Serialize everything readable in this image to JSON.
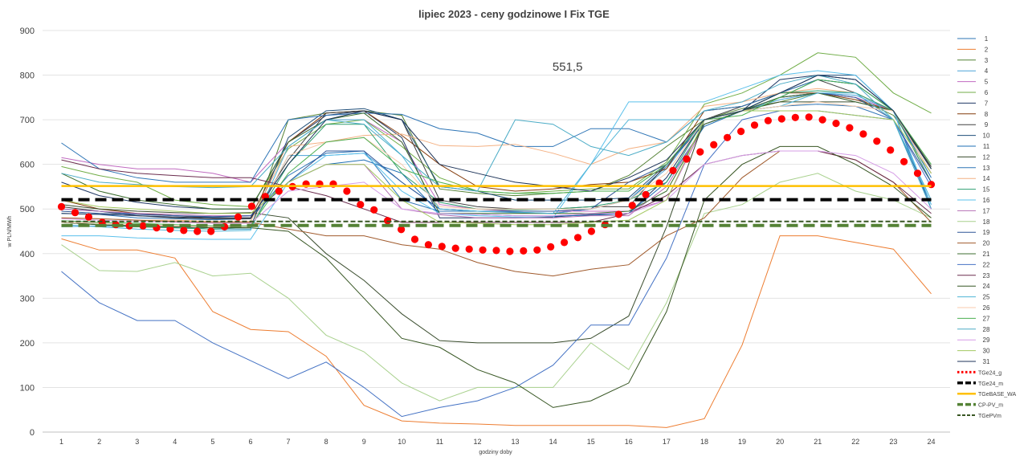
{
  "chart_data": {
    "type": "line",
    "title": "lipiec 2023 - ceny godzinowe I Fix TGE",
    "xlabel": "godziny doby",
    "ylabel": "w PLN/MWh",
    "ylim": [
      0,
      900
    ],
    "yticks": [
      "0",
      "100",
      "200",
      "300",
      "400",
      "500",
      "600",
      "700",
      "800",
      "900"
    ],
    "categories": [
      "1",
      "2",
      "3",
      "4",
      "5",
      "6",
      "7",
      "8",
      "9",
      "10",
      "11",
      "12",
      "13",
      "14",
      "15",
      "16",
      "17",
      "18",
      "19",
      "20",
      "21",
      "22",
      "23",
      "24"
    ],
    "annotation": {
      "text": "551,5",
      "x": 13.9,
      "y": 812
    },
    "series": [
      {
        "name": "1",
        "color": "#2e75b6",
        "values": [
          490,
          488,
          480,
          478,
          476,
          478,
          575,
          625,
          630,
          520,
          495,
          495,
          492,
          490,
          500,
          520,
          595,
          700,
          720,
          730,
          735,
          730,
          700,
          510
        ]
      },
      {
        "name": "2",
        "color": "#ed7d31",
        "values": [
          433,
          408,
          408,
          390,
          270,
          230,
          225,
          170,
          60,
          25,
          20,
          18,
          15,
          15,
          15,
          15,
          10,
          30,
          195,
          440,
          440,
          425,
          410,
          310
        ]
      },
      {
        "name": "3",
        "color": "#548235",
        "values": [
          470,
          465,
          460,
          458,
          455,
          455,
          700,
          715,
          720,
          710,
          545,
          535,
          530,
          535,
          540,
          575,
          640,
          700,
          725,
          740,
          760,
          750,
          710,
          595
        ]
      },
      {
        "name": "4",
        "color": "#4aa3d8",
        "values": [
          460,
          462,
          460,
          458,
          455,
          455,
          620,
          620,
          625,
          560,
          500,
          495,
          493,
          490,
          500,
          520,
          590,
          700,
          720,
          745,
          760,
          755,
          720,
          560
        ]
      },
      {
        "name": "5",
        "color": "#c06ac0",
        "values": [
          615,
          600,
          590,
          590,
          580,
          560,
          650,
          700,
          700,
          650,
          510,
          500,
          495,
          495,
          495,
          495,
          520,
          690,
          720,
          750,
          760,
          750,
          720,
          590
        ]
      },
      {
        "name": "6",
        "color": "#70ad47",
        "values": [
          595,
          575,
          560,
          520,
          510,
          505,
          635,
          690,
          700,
          640,
          570,
          540,
          535,
          540,
          545,
          545,
          605,
          735,
          760,
          800,
          850,
          840,
          760,
          715
        ]
      },
      {
        "name": "7",
        "color": "#203864",
        "values": [
          560,
          530,
          515,
          505,
          500,
          500,
          650,
          710,
          720,
          660,
          480,
          480,
          480,
          482,
          488,
          490,
          570,
          700,
          720,
          790,
          800,
          790,
          720,
          560
        ]
      },
      {
        "name": "8",
        "color": "#843c0c",
        "values": [
          520,
          500,
          490,
          485,
          480,
          480,
          650,
          715,
          720,
          665,
          600,
          550,
          540,
          545,
          555,
          560,
          590,
          720,
          730,
          760,
          760,
          745,
          720,
          580
        ]
      },
      {
        "name": "9",
        "color": "#404040",
        "values": [
          505,
          495,
          485,
          480,
          478,
          478,
          610,
          715,
          720,
          700,
          520,
          505,
          500,
          500,
          505,
          505,
          600,
          700,
          730,
          760,
          790,
          760,
          720,
          595
        ]
      },
      {
        "name": "10",
        "color": "#1f4e79",
        "values": [
          470,
          465,
          462,
          460,
          458,
          460,
          660,
          720,
          725,
          700,
          550,
          540,
          520,
          520,
          520,
          525,
          600,
          700,
          720,
          760,
          800,
          800,
          720,
          500
        ]
      },
      {
        "name": "11",
        "color": "#1f6fb5",
        "values": [
          500,
          495,
          488,
          485,
          482,
          485,
          560,
          600,
          610,
          580,
          490,
          488,
          485,
          484,
          486,
          490,
          560,
          685,
          720,
          750,
          790,
          780,
          720,
          570
        ]
      },
      {
        "name": "12",
        "color": "#3a4d2e",
        "values": [
          510,
          500,
          495,
          492,
          490,
          492,
          480,
          400,
          340,
          265,
          205,
          200,
          200,
          200,
          210,
          260,
          460,
          700,
          720,
          740,
          740,
          740,
          720,
          590
        ]
      },
      {
        "name": "13",
        "color": "#2e75b6",
        "values": [
          648,
          590,
          570,
          560,
          560,
          560,
          700,
          710,
          715,
          712,
          680,
          670,
          640,
          640,
          680,
          680,
          650,
          720,
          730,
          760,
          790,
          780,
          720,
          500
        ]
      },
      {
        "name": "14",
        "color": "#f4b183",
        "values": [
          480,
          478,
          475,
          475,
          472,
          472,
          640,
          650,
          665,
          668,
          642,
          640,
          645,
          625,
          600,
          635,
          650,
          730,
          740,
          760,
          770,
          760,
          720,
          560
        ]
      },
      {
        "name": "15",
        "color": "#2e9e70",
        "values": [
          470,
          465,
          460,
          458,
          455,
          460,
          600,
          690,
          690,
          580,
          515,
          500,
          498,
          500,
          505,
          520,
          560,
          700,
          720,
          760,
          765,
          760,
          720,
          560
        ]
      },
      {
        "name": "16",
        "color": "#5bc0eb",
        "values": [
          440,
          440,
          435,
          433,
          432,
          432,
          560,
          620,
          625,
          540,
          490,
          485,
          482,
          480,
          600,
          740,
          740,
          740,
          770,
          800,
          810,
          800,
          720,
          510
        ]
      },
      {
        "name": "17",
        "color": "#b470b4",
        "values": [
          500,
          495,
          490,
          488,
          485,
          485,
          560,
          600,
          600,
          500,
          487,
          480,
          480,
          480,
          485,
          485,
          550,
          690,
          720,
          750,
          760,
          740,
          720,
          580
        ]
      },
      {
        "name": "18",
        "color": "#a9d18e",
        "values": [
          420,
          362,
          360,
          380,
          350,
          356,
          300,
          217,
          180,
          110,
          70,
          100,
          100,
          100,
          200,
          140,
          290,
          490,
          510,
          560,
          580,
          540,
          520,
          480
        ]
      },
      {
        "name": "19",
        "color": "#2f5597",
        "values": [
          495,
          490,
          488,
          485,
          483,
          485,
          560,
          630,
          630,
          560,
          500,
          495,
          495,
          495,
          500,
          560,
          600,
          690,
          720,
          750,
          760,
          750,
          700,
          560
        ]
      },
      {
        "name": "20",
        "color": "#a05a2c",
        "values": [
          480,
          478,
          475,
          472,
          470,
          470,
          455,
          440,
          440,
          420,
          410,
          380,
          360,
          350,
          365,
          375,
          440,
          480,
          570,
          630,
          630,
          610,
          560,
          470
        ]
      },
      {
        "name": "21",
        "color": "#3c6e2f",
        "values": [
          580,
          540,
          520,
          510,
          500,
          500,
          650,
          700,
          715,
          650,
          490,
          490,
          490,
          490,
          490,
          495,
          540,
          690,
          720,
          750,
          760,
          740,
          720,
          590
        ]
      },
      {
        "name": "22",
        "color": "#4472c4",
        "values": [
          360,
          290,
          250,
          250,
          200,
          160,
          120,
          157,
          100,
          35,
          55,
          70,
          100,
          150,
          240,
          240,
          390,
          600,
          700,
          720,
          720,
          710,
          700,
          550
        ]
      },
      {
        "name": "23",
        "color": "#6b2c4e",
        "values": [
          610,
          590,
          580,
          575,
          570,
          570,
          550,
          530,
          500,
          470,
          470,
          470,
          470,
          470,
          470,
          490,
          530,
          600,
          620,
          630,
          630,
          610,
          560,
          490
        ]
      },
      {
        "name": "24",
        "color": "#375623",
        "values": [
          470,
          465,
          462,
          460,
          458,
          458,
          450,
          390,
          300,
          210,
          190,
          140,
          110,
          55,
          70,
          110,
          270,
          520,
          600,
          640,
          640,
          600,
          550,
          480
        ]
      },
      {
        "name": "25",
        "color": "#4fb4d6",
        "values": [
          465,
          460,
          455,
          452,
          450,
          452,
          640,
          700,
          700,
          620,
          500,
          495,
          493,
          490,
          600,
          700,
          700,
          700,
          720,
          730,
          760,
          760,
          700,
          520
        ]
      },
      {
        "name": "26",
        "color": "#f8cbad",
        "values": [
          470,
          468,
          465,
          462,
          460,
          460,
          620,
          650,
          660,
          600,
          505,
          500,
          500,
          500,
          500,
          520,
          580,
          700,
          720,
          730,
          740,
          730,
          720,
          580
        ]
      },
      {
        "name": "27",
        "color": "#4caf50",
        "values": [
          474,
          470,
          468,
          465,
          462,
          462,
          580,
          650,
          660,
          590,
          560,
          540,
          535,
          535,
          540,
          540,
          600,
          700,
          710,
          750,
          790,
          780,
          720,
          600
        ]
      },
      {
        "name": "28",
        "color": "#4bacc6",
        "values": [
          580,
          560,
          555,
          550,
          548,
          550,
          640,
          700,
          690,
          620,
          550,
          540,
          700,
          690,
          640,
          620,
          650,
          720,
          740,
          780,
          800,
          780,
          700,
          500
        ]
      },
      {
        "name": "29",
        "color": "#d59ce6",
        "values": [
          478,
          475,
          472,
          470,
          468,
          468,
          540,
          550,
          560,
          500,
          490,
          488,
          485,
          485,
          490,
          490,
          520,
          600,
          620,
          630,
          630,
          620,
          580,
          500
        ]
      },
      {
        "name": "30",
        "color": "#a3c860",
        "values": [
          520,
          505,
          500,
          495,
          490,
          490,
          560,
          600,
          600,
          520,
          470,
          468,
          465,
          465,
          470,
          475,
          520,
          700,
          720,
          720,
          720,
          710,
          700,
          580
        ]
      },
      {
        "name": "31",
        "color": "#1c3358",
        "values": [
          490,
          488,
          485,
          482,
          480,
          480,
          600,
          700,
          720,
          700,
          600,
          580,
          560,
          550,
          540,
          570,
          610,
          700,
          720,
          760,
          800,
          790,
          720,
          590
        ]
      }
    ],
    "reference_series": [
      {
        "name": "TGe24_g",
        "color": "#ff0000",
        "style": "dots",
        "values": [
          505,
          492,
          482,
          470,
          465,
          462,
          462,
          458,
          455,
          452,
          450,
          450,
          460,
          482,
          506,
          528,
          540,
          550,
          556,
          556,
          556,
          540,
          510,
          498,
          474,
          454,
          432,
          420,
          416,
          412,
          410,
          408,
          407,
          405,
          406,
          408,
          415,
          425,
          436,
          450,
          465,
          488,
          508,
          532,
          558,
          586,
          612,
          628,
          644,
          660,
          674,
          688,
          698,
          702,
          705,
          706,
          700,
          692,
          682,
          668,
          652,
          632,
          606,
          580,
          555
        ]
      },
      {
        "name": "TGe24_m",
        "color": "#000000",
        "style": "dash-thick",
        "values": [
          521,
          521,
          521,
          521,
          521,
          521,
          521,
          521,
          521,
          521,
          521,
          521,
          521,
          521,
          521,
          521,
          521,
          521,
          521,
          521,
          521,
          521,
          521,
          521
        ]
      },
      {
        "name": "TGeBASE_WA",
        "color": "#ffc000",
        "style": "solid",
        "values": [
          551.5,
          551.5,
          551.5,
          551.5,
          551.5,
          551.5,
          551.5,
          551.5,
          551.5,
          551.5,
          551.5,
          551.5,
          551.5,
          551.5,
          551.5,
          551.5,
          551.5,
          551.5,
          551.5,
          551.5,
          551.5,
          551.5,
          551.5,
          551.5
        ]
      },
      {
        "name": "CP-PV_m",
        "color": "#548235",
        "style": "dash-thick",
        "values": [
          463,
          463,
          463,
          463,
          463,
          463,
          463,
          463,
          463,
          463,
          463,
          463,
          463,
          463,
          463,
          463,
          463,
          463,
          463,
          463,
          463,
          463,
          463,
          463
        ]
      },
      {
        "name": "TGePVm",
        "color": "#385723",
        "style": "dash-thin",
        "values": [
          472,
          472,
          472,
          472,
          472,
          472,
          472,
          472,
          472,
          472,
          472,
          472,
          472,
          472,
          472,
          472,
          472,
          472,
          472,
          472,
          472,
          472,
          472,
          472
        ]
      }
    ],
    "legend_position": "right"
  }
}
